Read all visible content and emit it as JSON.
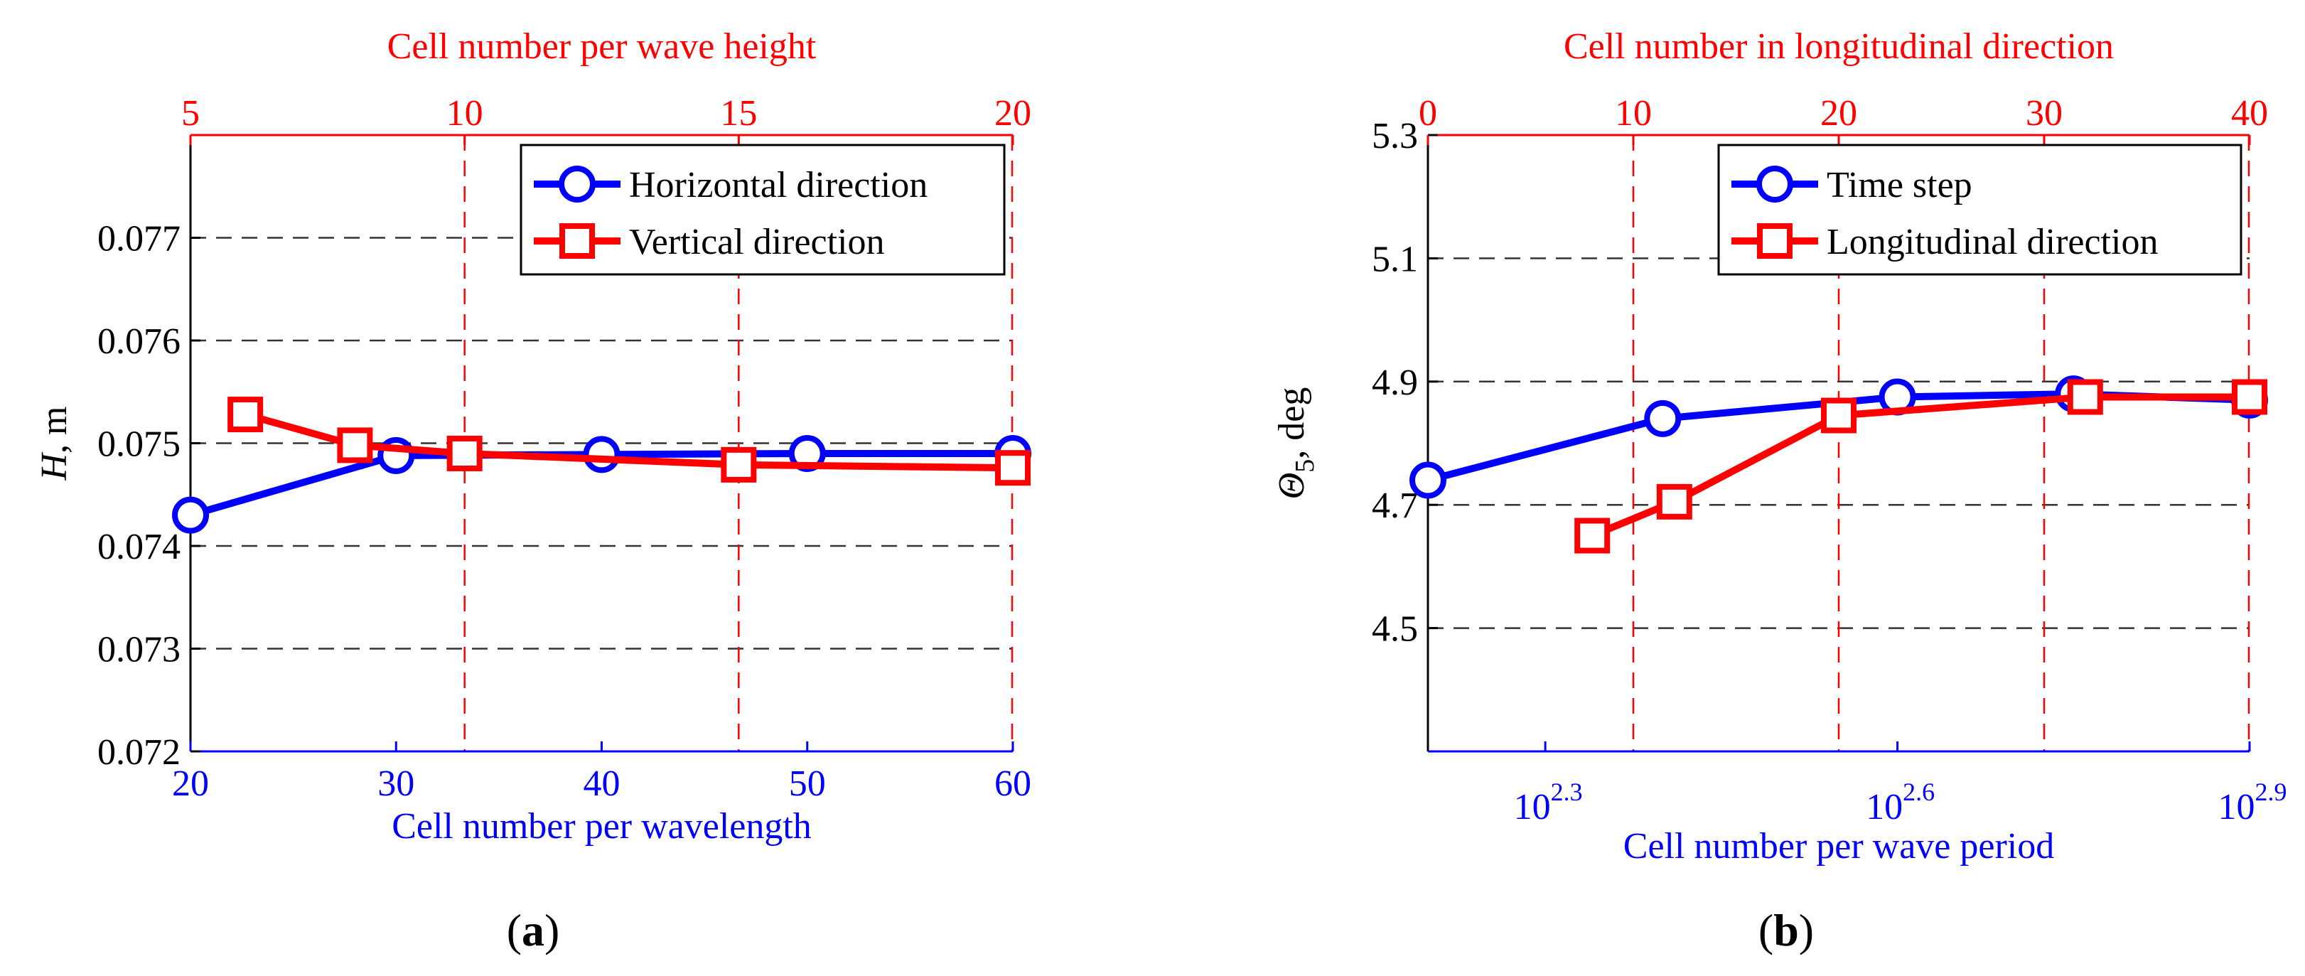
{
  "colors": {
    "blue": "#0000ff",
    "red": "#ff0000",
    "black": "#000000",
    "grid": "#555555"
  },
  "chart_data": [
    {
      "id": "a",
      "type": "line",
      "panel_label_paren_open": "(",
      "panel_label_letter": "a",
      "panel_label_paren_close": ")",
      "ylabel_italic": "H",
      "ylabel_rest": ", m",
      "ylim": [
        0.072,
        0.078
      ],
      "yticks": [
        0.072,
        0.073,
        0.074,
        0.075,
        0.076,
        0.077
      ],
      "ytick_labels": [
        "0.072",
        "0.073",
        "0.074",
        "0.075",
        "0.076",
        "0.077"
      ],
      "grid": true,
      "bottom_axis": {
        "label": "Cell number per wavelength",
        "color": "blue",
        "scale": "linear",
        "lim": [
          20,
          60
        ],
        "ticks": [
          20,
          30,
          40,
          50,
          60
        ],
        "tick_labels": [
          "20",
          "30",
          "40",
          "50",
          "60"
        ]
      },
      "top_axis": {
        "label": "Cell number per wave height",
        "color": "red",
        "scale": "linear",
        "lim": [
          5,
          20
        ],
        "ticks": [
          5,
          10,
          15,
          20
        ],
        "tick_labels": [
          "5",
          "10",
          "15",
          "20"
        ]
      },
      "legend_position": "top-right",
      "series": [
        {
          "name": "Horizontal direction",
          "axis": "bottom",
          "marker": "circle",
          "color": "blue",
          "x": [
            20,
            30,
            40,
            50,
            60
          ],
          "y": [
            0.0743,
            0.07488,
            0.07489,
            0.0749,
            0.0749
          ]
        },
        {
          "name": "Vertical direction",
          "axis": "top",
          "marker": "square",
          "color": "red",
          "x": [
            6,
            8,
            10,
            15,
            20
          ],
          "y": [
            0.07528,
            0.07498,
            0.0749,
            0.07479,
            0.07476
          ]
        }
      ]
    },
    {
      "id": "b",
      "type": "line",
      "panel_label_paren_open": "(",
      "panel_label_letter": "b",
      "panel_label_paren_close": ")",
      "ylabel_symbol": "Θ",
      "ylabel_sub": "5",
      "ylabel_rest": ", deg",
      "ylim": [
        4.3,
        5.3
      ],
      "yticks": [
        4.5,
        4.7,
        4.9,
        5.1,
        5.3
      ],
      "ytick_labels": [
        "4.5",
        "4.7",
        "4.9",
        "5.1",
        "5.3"
      ],
      "grid": true,
      "bottom_axis": {
        "label": "Cell number per wave period",
        "color": "blue",
        "scale": "log10",
        "lim_exponent": [
          2.2,
          2.9
        ],
        "ticks_exponent": [
          2.3,
          2.6,
          2.9
        ],
        "tick_base": "10",
        "tick_exponent_labels": [
          "2.3",
          "2.6",
          "2.9"
        ]
      },
      "top_axis": {
        "label": "Cell number in longitudinal direction",
        "color": "red",
        "scale": "linear",
        "lim": [
          0,
          40
        ],
        "ticks": [
          0,
          10,
          20,
          30,
          40
        ],
        "tick_labels": [
          "0",
          "10",
          "20",
          "30",
          "40"
        ]
      },
      "legend_position": "top-right",
      "series": [
        {
          "name": "Time step",
          "axis": "bottom",
          "marker": "circle",
          "color": "blue",
          "x_exponent": [
            2.2,
            2.4,
            2.6,
            2.75,
            2.9
          ],
          "y": [
            4.74,
            4.84,
            4.875,
            4.88,
            4.87
          ]
        },
        {
          "name": "Longitudinal direction",
          "axis": "top",
          "marker": "square",
          "color": "red",
          "x": [
            8,
            12,
            20,
            32,
            40
          ],
          "y": [
            4.65,
            4.705,
            4.845,
            4.875,
            4.875
          ]
        }
      ]
    }
  ]
}
